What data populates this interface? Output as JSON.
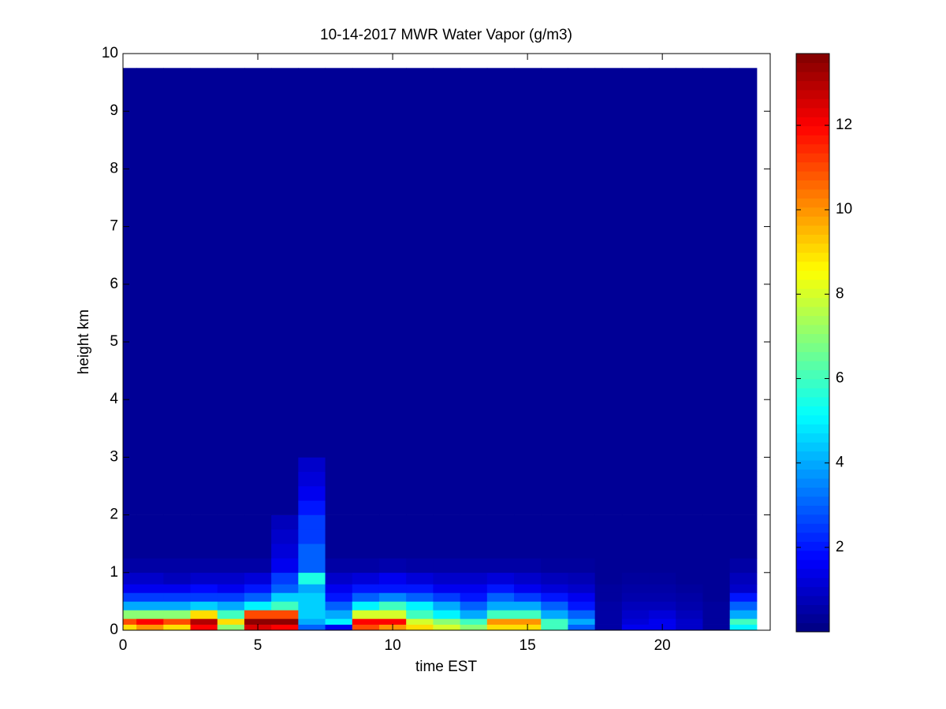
{
  "chart_data": {
    "type": "heatmap",
    "title": "10-14-2017 MWR Water Vapor (g/m3)",
    "x_label": "time EST",
    "y_label": "height km",
    "x": [
      0,
      1,
      2,
      3,
      4,
      5,
      6,
      7,
      8,
      9,
      10,
      11,
      12,
      13,
      14,
      15,
      16,
      17,
      18,
      19,
      20,
      21,
      22,
      23
    ],
    "y_edges": [
      0,
      0.1,
      0.2,
      0.35,
      0.5,
      0.65,
      0.8,
      1.0,
      1.25,
      1.5,
      1.75,
      2.0,
      2.25,
      2.5,
      2.75,
      3.0,
      9.75
    ],
    "z": [
      [
        9,
        11,
        7,
        4,
        2.5,
        1.5,
        1,
        0.5,
        0.3,
        0.3,
        0.3,
        0.3,
        0.3,
        0.3,
        0.3,
        0.3
      ],
      [
        10,
        12,
        7,
        4,
        2.5,
        1.5,
        1,
        0.5,
        0.3,
        0.3,
        0.3,
        0.3,
        0.3,
        0.3,
        0.3,
        0.3
      ],
      [
        9,
        11,
        7,
        4,
        2.5,
        1.5,
        0.8,
        0.5,
        0.3,
        0.3,
        0.3,
        0.3,
        0.3,
        0.3,
        0.3,
        0.3
      ],
      [
        12,
        13,
        9,
        4.5,
        2.5,
        1.8,
        1,
        0.5,
        0.3,
        0.3,
        0.3,
        0.3,
        0.3,
        0.3,
        0.3,
        0.3
      ],
      [
        7,
        9,
        6,
        4,
        2.5,
        1.5,
        1,
        0.5,
        0.3,
        0.3,
        0.3,
        0.3,
        0.3,
        0.3,
        0.3,
        0.3
      ],
      [
        12.5,
        13.5,
        11,
        5,
        3,
        2,
        1.2,
        0.5,
        0.3,
        0.3,
        0.3,
        0.3,
        0.3,
        0.3,
        0.3,
        0.3
      ],
      [
        12,
        13.5,
        11,
        6,
        4.5,
        3,
        2.5,
        1.5,
        1.2,
        1,
        0.8,
        0.3,
        0.3,
        0.3,
        0.3,
        0.3
      ],
      [
        3,
        4,
        4.5,
        4.5,
        4.5,
        4,
        5.5,
        3,
        3,
        2.5,
        2.5,
        2,
        1.5,
        1.2,
        1,
        0.3
      ],
      [
        1.5,
        5,
        4,
        3,
        2,
        1.5,
        1,
        0.5,
        0.3,
        0.3,
        0.3,
        0.3,
        0.3,
        0.3,
        0.3,
        0.3
      ],
      [
        11,
        12,
        8,
        5,
        3,
        2,
        1.2,
        0.5,
        0.3,
        0.3,
        0.3,
        0.3,
        0.3,
        0.3,
        0.3,
        0.3
      ],
      [
        10,
        12,
        8,
        6,
        3.5,
        2,
        1.5,
        0.6,
        0.3,
        0.3,
        0.3,
        0.3,
        0.3,
        0.3,
        0.3,
        0.3
      ],
      [
        9,
        8,
        6,
        5,
        3,
        2,
        1.2,
        0.5,
        0.3,
        0.3,
        0.3,
        0.3,
        0.3,
        0.3,
        0.3,
        0.3
      ],
      [
        8,
        7,
        5,
        4,
        2.5,
        1.5,
        1,
        0.5,
        0.3,
        0.3,
        0.3,
        0.3,
        0.3,
        0.3,
        0.3,
        0.3
      ],
      [
        7,
        6,
        4,
        3,
        2,
        1.5,
        1,
        0.5,
        0.3,
        0.3,
        0.3,
        0.3,
        0.3,
        0.3,
        0.3,
        0.3
      ],
      [
        9,
        10,
        6,
        4,
        3,
        2,
        1.2,
        0.5,
        0.3,
        0.3,
        0.3,
        0.3,
        0.3,
        0.3,
        0.3,
        0.3
      ],
      [
        9,
        10,
        6,
        4,
        2.5,
        1.5,
        1,
        0.5,
        0.3,
        0.3,
        0.3,
        0.3,
        0.3,
        0.3,
        0.3,
        0.3
      ],
      [
        6,
        6,
        4,
        3,
        2,
        1.2,
        0.8,
        0.4,
        0.3,
        0.3,
        0.3,
        0.3,
        0.3,
        0.3,
        0.3,
        0.3
      ],
      [
        3,
        4,
        3,
        2,
        1.5,
        1,
        0.7,
        0.4,
        0.3,
        0.3,
        0.3,
        0.3,
        0.3,
        0.3,
        0.3,
        0.3
      ],
      [
        0.5,
        0.5,
        0.5,
        0.5,
        0.4,
        0.4,
        0.3,
        0.3,
        0.3,
        0.3,
        0.3,
        0.3,
        0.3,
        0.3,
        0.3,
        0.3
      ],
      [
        1.5,
        1.2,
        1,
        0.8,
        0.6,
        0.5,
        0.4,
        0.3,
        0.3,
        0.3,
        0.3,
        0.3,
        0.3,
        0.3,
        0.3,
        0.3
      ],
      [
        1.5,
        1.5,
        1.2,
        0.8,
        0.6,
        0.5,
        0.4,
        0.3,
        0.3,
        0.3,
        0.3,
        0.3,
        0.3,
        0.3,
        0.3,
        0.3
      ],
      [
        1,
        1,
        0.8,
        0.6,
        0.5,
        0.4,
        0.3,
        0.3,
        0.3,
        0.3,
        0.3,
        0.3,
        0.3,
        0.3,
        0.3,
        0.3
      ],
      [
        0.4,
        0.4,
        0.4,
        0.4,
        0.3,
        0.3,
        0.3,
        0.3,
        0.3,
        0.3,
        0.3,
        0.3,
        0.3,
        0.3,
        0.3,
        0.3
      ],
      [
        5,
        6,
        4,
        3,
        2,
        1,
        0.8,
        0.5,
        0.3,
        0.3,
        0.3,
        0.3,
        0.3,
        0.3,
        0.3,
        0.3
      ]
    ],
    "xlim": [
      0,
      24
    ],
    "xticks": [
      0,
      5,
      10,
      15,
      20
    ],
    "ylim": [
      0,
      10
    ],
    "yticks": [
      0,
      1,
      2,
      3,
      4,
      5,
      6,
      7,
      8,
      9,
      10
    ],
    "colormap": "jet",
    "clim": [
      0,
      13.7
    ],
    "cticks": [
      2,
      4,
      6,
      8,
      10,
      12
    ]
  }
}
